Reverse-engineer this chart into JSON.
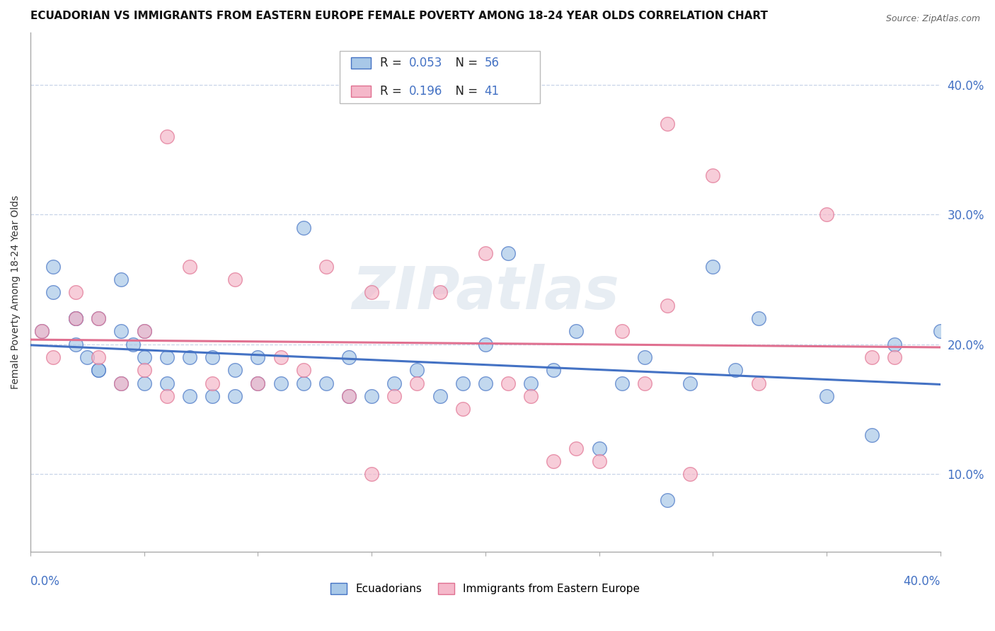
{
  "title": "ECUADORIAN VS IMMIGRANTS FROM EASTERN EUROPE FEMALE POVERTY AMONG 18-24 YEAR OLDS CORRELATION CHART",
  "source": "Source: ZipAtlas.com",
  "ylabel": "Female Poverty Among 18-24 Year Olds",
  "legend_label1": "Ecuadorians",
  "legend_label2": "Immigrants from Eastern Europe",
  "R1": "0.053",
  "N1": "56",
  "R2": "0.196",
  "N2": "41",
  "color_blue": "#a8c8e8",
  "color_pink": "#f5b8ca",
  "line_blue": "#4472c4",
  "line_pink": "#e07090",
  "xrange": [
    0.0,
    0.4
  ],
  "yrange": [
    0.04,
    0.44
  ],
  "ytick_vals": [
    0.1,
    0.2,
    0.3,
    0.4
  ],
  "watermark": "ZIPatlas",
  "background_color": "#ffffff",
  "grid_color": "#c8d4e8",
  "blue_x": [
    0.005,
    0.01,
    0.01,
    0.02,
    0.02,
    0.02,
    0.025,
    0.03,
    0.03,
    0.03,
    0.04,
    0.04,
    0.04,
    0.045,
    0.05,
    0.05,
    0.05,
    0.06,
    0.06,
    0.07,
    0.07,
    0.08,
    0.08,
    0.09,
    0.09,
    0.1,
    0.1,
    0.11,
    0.12,
    0.12,
    0.13,
    0.14,
    0.14,
    0.15,
    0.16,
    0.17,
    0.18,
    0.19,
    0.2,
    0.2,
    0.21,
    0.22,
    0.23,
    0.24,
    0.25,
    0.26,
    0.27,
    0.28,
    0.29,
    0.3,
    0.31,
    0.32,
    0.35,
    0.37,
    0.38,
    0.4
  ],
  "blue_y": [
    0.21,
    0.24,
    0.26,
    0.2,
    0.22,
    0.22,
    0.19,
    0.18,
    0.22,
    0.18,
    0.17,
    0.21,
    0.25,
    0.2,
    0.17,
    0.19,
    0.21,
    0.17,
    0.19,
    0.16,
    0.19,
    0.16,
    0.19,
    0.16,
    0.18,
    0.17,
    0.19,
    0.17,
    0.17,
    0.29,
    0.17,
    0.16,
    0.19,
    0.16,
    0.17,
    0.18,
    0.16,
    0.17,
    0.17,
    0.2,
    0.27,
    0.17,
    0.18,
    0.21,
    0.12,
    0.17,
    0.19,
    0.08,
    0.17,
    0.26,
    0.18,
    0.22,
    0.16,
    0.13,
    0.2,
    0.21
  ],
  "pink_x": [
    0.005,
    0.01,
    0.02,
    0.02,
    0.03,
    0.03,
    0.04,
    0.05,
    0.05,
    0.06,
    0.07,
    0.08,
    0.09,
    0.1,
    0.11,
    0.12,
    0.13,
    0.14,
    0.15,
    0.16,
    0.17,
    0.18,
    0.19,
    0.2,
    0.21,
    0.22,
    0.23,
    0.24,
    0.25,
    0.26,
    0.27,
    0.28,
    0.29,
    0.3,
    0.32,
    0.35,
    0.37,
    0.38,
    0.28,
    0.06,
    0.15
  ],
  "pink_y": [
    0.21,
    0.19,
    0.22,
    0.24,
    0.19,
    0.22,
    0.17,
    0.18,
    0.21,
    0.16,
    0.26,
    0.17,
    0.25,
    0.17,
    0.19,
    0.18,
    0.26,
    0.16,
    0.24,
    0.16,
    0.17,
    0.24,
    0.15,
    0.27,
    0.17,
    0.16,
    0.11,
    0.12,
    0.11,
    0.21,
    0.17,
    0.23,
    0.1,
    0.33,
    0.17,
    0.3,
    0.19,
    0.19,
    0.37,
    0.36,
    0.1
  ]
}
